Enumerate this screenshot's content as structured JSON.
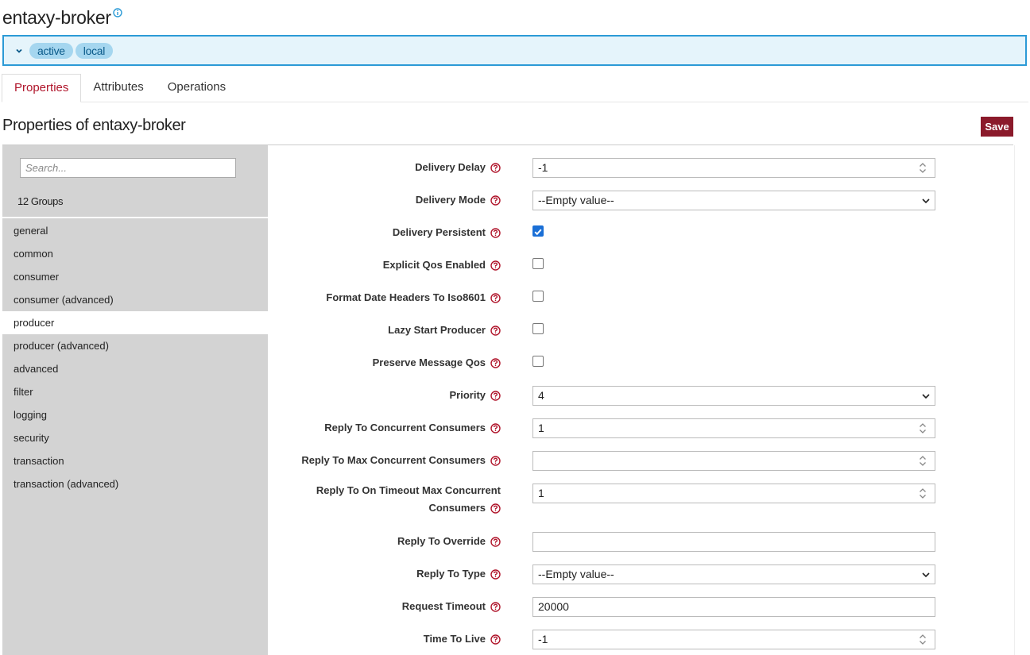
{
  "header": {
    "title": "entaxy-broker",
    "info_icon": "info-circle-icon"
  },
  "status": {
    "badges": [
      "active",
      "local"
    ],
    "toggle_icon": "chevron-down-icon"
  },
  "tabs": [
    {
      "label": "Properties",
      "active": true
    },
    {
      "label": "Attributes",
      "active": false
    },
    {
      "label": "Operations",
      "active": false
    }
  ],
  "section": {
    "title": "Properties of entaxy-broker",
    "save_label": "Save"
  },
  "sidebar": {
    "search_placeholder": "Search...",
    "groups_count": "12 Groups",
    "groups": [
      {
        "label": "general"
      },
      {
        "label": "common"
      },
      {
        "label": "consumer"
      },
      {
        "label": "consumer (advanced)"
      },
      {
        "label": "producer",
        "active": true
      },
      {
        "label": "producer (advanced)"
      },
      {
        "label": "advanced"
      },
      {
        "label": "filter"
      },
      {
        "label": "logging"
      },
      {
        "label": "security"
      },
      {
        "label": "transaction"
      },
      {
        "label": "transaction (advanced)"
      }
    ]
  },
  "properties": [
    {
      "label": "Delivery Delay",
      "type": "number",
      "value": "-1"
    },
    {
      "label": "Delivery Mode",
      "type": "select",
      "value": "--Empty value--"
    },
    {
      "label": "Delivery Persistent",
      "type": "checkbox",
      "checked": true
    },
    {
      "label": "Explicit Qos Enabled",
      "type": "checkbox",
      "checked": false
    },
    {
      "label": "Format Date Headers To Iso8601",
      "type": "checkbox",
      "checked": false
    },
    {
      "label": "Lazy Start Producer",
      "type": "checkbox",
      "checked": false
    },
    {
      "label": "Preserve Message Qos",
      "type": "checkbox",
      "checked": false
    },
    {
      "label": "Priority",
      "type": "select",
      "value": "4"
    },
    {
      "label": "Reply To Concurrent Consumers",
      "type": "number",
      "value": "1"
    },
    {
      "label": "Reply To Max Concurrent Consumers",
      "type": "number",
      "value": ""
    },
    {
      "label_line1": "Reply To On Timeout Max Concurrent",
      "label_line2": "Consumers",
      "type": "number",
      "value": "1"
    },
    {
      "label": "Reply To Override",
      "type": "text",
      "value": ""
    },
    {
      "label": "Reply To Type",
      "type": "select",
      "value": "--Empty value--"
    },
    {
      "label": "Request Timeout",
      "type": "text",
      "value": "20000"
    },
    {
      "label": "Time To Live",
      "type": "number",
      "value": "-1"
    }
  ],
  "colors": {
    "accent": "#b0152b",
    "save": "#8b1a2b",
    "status_border": "#2b9ad6",
    "status_bg": "#e5f4fb",
    "checkbox": "#1a6fd6"
  },
  "icons": {
    "help": "question-circle-icon",
    "spinner": "spinner-arrows-icon",
    "select": "chevron-down-icon"
  }
}
